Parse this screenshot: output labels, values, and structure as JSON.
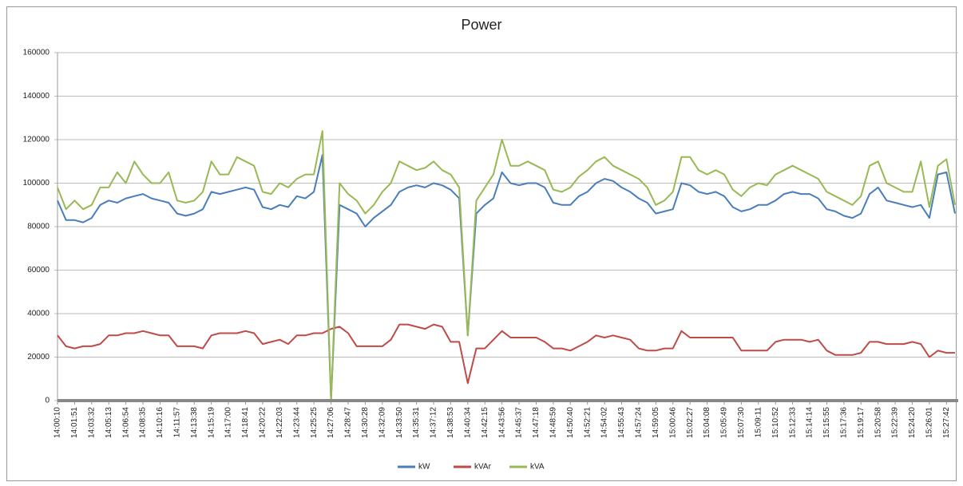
{
  "chart_data": {
    "type": "line",
    "title": "Power",
    "categories": [
      "14:00:10",
      null,
      "14:01:51",
      null,
      "14:03:32",
      null,
      "14:05:13",
      null,
      "14:06:54",
      null,
      "14:08:35",
      null,
      "14:10:16",
      null,
      "14:11:57",
      null,
      "14:13:38",
      null,
      "14:15:19",
      null,
      "14:17:00",
      null,
      "14:18:41",
      null,
      "14:20:22",
      null,
      "14:22:03",
      null,
      "14:23:44",
      null,
      "14:25:25",
      null,
      "14:27:06",
      null,
      "14:28:47",
      null,
      "14:30:28",
      null,
      "14:32:09",
      null,
      "14:33:50",
      null,
      "14:35:31",
      null,
      "14:37:12",
      null,
      "14:38:53",
      null,
      "14:40:34",
      null,
      "14:42:15",
      null,
      "14:43:56",
      null,
      "14:45:37",
      null,
      "14:47:18",
      null,
      "14:48:59",
      null,
      "14:50:40",
      null,
      "14:52:21",
      null,
      "14:54:02",
      null,
      "14:55:43",
      null,
      "14:57:24",
      null,
      "14:59:05",
      null,
      "15:00:46",
      null,
      "15:02:27",
      null,
      "15:04:08",
      null,
      "15:05:49",
      null,
      "15:07:30",
      null,
      "15:09:11",
      null,
      "15:10:52",
      null,
      "15:12:33",
      null,
      "15:14:14",
      null,
      "15:15:55",
      null,
      "15:17:36",
      null,
      "15:19:17",
      null,
      "15:20:58",
      null,
      "15:22:39",
      null,
      "15:24:20",
      null,
      "15:26:01",
      null,
      "15:27:42",
      null
    ],
    "series": [
      {
        "name": "kW",
        "color": "#4a7ebb",
        "values": [
          92000,
          83000,
          83000,
          82000,
          84000,
          90000,
          92000,
          91000,
          93000,
          94000,
          95000,
          93000,
          92000,
          91000,
          86000,
          85000,
          86000,
          88000,
          96000,
          95000,
          96000,
          97000,
          98000,
          97000,
          89000,
          88000,
          90000,
          89000,
          94000,
          93000,
          96000,
          113000,
          0,
          90000,
          88000,
          86000,
          80000,
          84000,
          87000,
          90000,
          96000,
          98000,
          99000,
          98000,
          100000,
          99000,
          97000,
          93000,
          30000,
          86000,
          90000,
          93000,
          105000,
          100000,
          99000,
          100000,
          100000,
          98000,
          91000,
          90000,
          90000,
          94000,
          96000,
          100000,
          102000,
          101000,
          98000,
          96000,
          93000,
          91000,
          86000,
          87000,
          88000,
          100000,
          99000,
          96000,
          95000,
          96000,
          94000,
          89000,
          87000,
          88000,
          90000,
          90000,
          92000,
          95000,
          96000,
          95000,
          95000,
          93000,
          88000,
          87000,
          85000,
          84000,
          86000,
          95000,
          98000,
          92000,
          91000,
          90000,
          89000,
          90000,
          84000,
          104000,
          105000,
          86000
        ]
      },
      {
        "name": "kVAr",
        "color": "#be4b48",
        "values": [
          30000,
          25000,
          24000,
          25000,
          25000,
          26000,
          30000,
          30000,
          31000,
          31000,
          32000,
          31000,
          30000,
          30000,
          25000,
          25000,
          25000,
          24000,
          30000,
          31000,
          31000,
          31000,
          32000,
          31000,
          26000,
          27000,
          28000,
          26000,
          30000,
          30000,
          31000,
          31000,
          33000,
          34000,
          31000,
          25000,
          25000,
          25000,
          25000,
          28000,
          35000,
          35000,
          34000,
          33000,
          35000,
          34000,
          27000,
          27000,
          8000,
          24000,
          24000,
          28000,
          32000,
          29000,
          29000,
          29000,
          29000,
          27000,
          24000,
          24000,
          23000,
          25000,
          27000,
          30000,
          29000,
          30000,
          29000,
          28000,
          24000,
          23000,
          23000,
          24000,
          24000,
          32000,
          29000,
          29000,
          29000,
          29000,
          29000,
          29000,
          23000,
          23000,
          23000,
          23000,
          27000,
          28000,
          28000,
          28000,
          27000,
          28000,
          23000,
          21000,
          21000,
          21000,
          22000,
          27000,
          27000,
          26000,
          26000,
          26000,
          27000,
          26000,
          20000,
          23000,
          22000,
          22000
        ]
      },
      {
        "name": "kVA",
        "color": "#98b954",
        "values": [
          98000,
          88000,
          92000,
          88000,
          90000,
          98000,
          98000,
          105000,
          100000,
          110000,
          104000,
          100000,
          100000,
          105000,
          92000,
          91000,
          92000,
          96000,
          110000,
          104000,
          104000,
          112000,
          110000,
          108000,
          96000,
          95000,
          100000,
          98000,
          102000,
          104000,
          104000,
          124000,
          0,
          100000,
          95000,
          92000,
          86000,
          90000,
          96000,
          100000,
          110000,
          108000,
          106000,
          107000,
          110000,
          106000,
          104000,
          98000,
          30000,
          92000,
          98000,
          104000,
          120000,
          108000,
          108000,
          110000,
          108000,
          106000,
          97000,
          96000,
          98000,
          103000,
          106000,
          110000,
          112000,
          108000,
          106000,
          104000,
          102000,
          98000,
          90000,
          92000,
          96000,
          112000,
          112000,
          106000,
          104000,
          106000,
          104000,
          97000,
          94000,
          98000,
          100000,
          99000,
          104000,
          106000,
          108000,
          106000,
          104000,
          102000,
          96000,
          94000,
          92000,
          90000,
          94000,
          108000,
          110000,
          100000,
          98000,
          96000,
          96000,
          110000,
          89000,
          108000,
          111000,
          90000
        ]
      }
    ],
    "ylim": [
      0,
      160000
    ],
    "yticks": [
      0,
      20000,
      40000,
      60000,
      80000,
      100000,
      120000,
      140000,
      160000
    ],
    "grid": true,
    "legend": "bottom"
  }
}
